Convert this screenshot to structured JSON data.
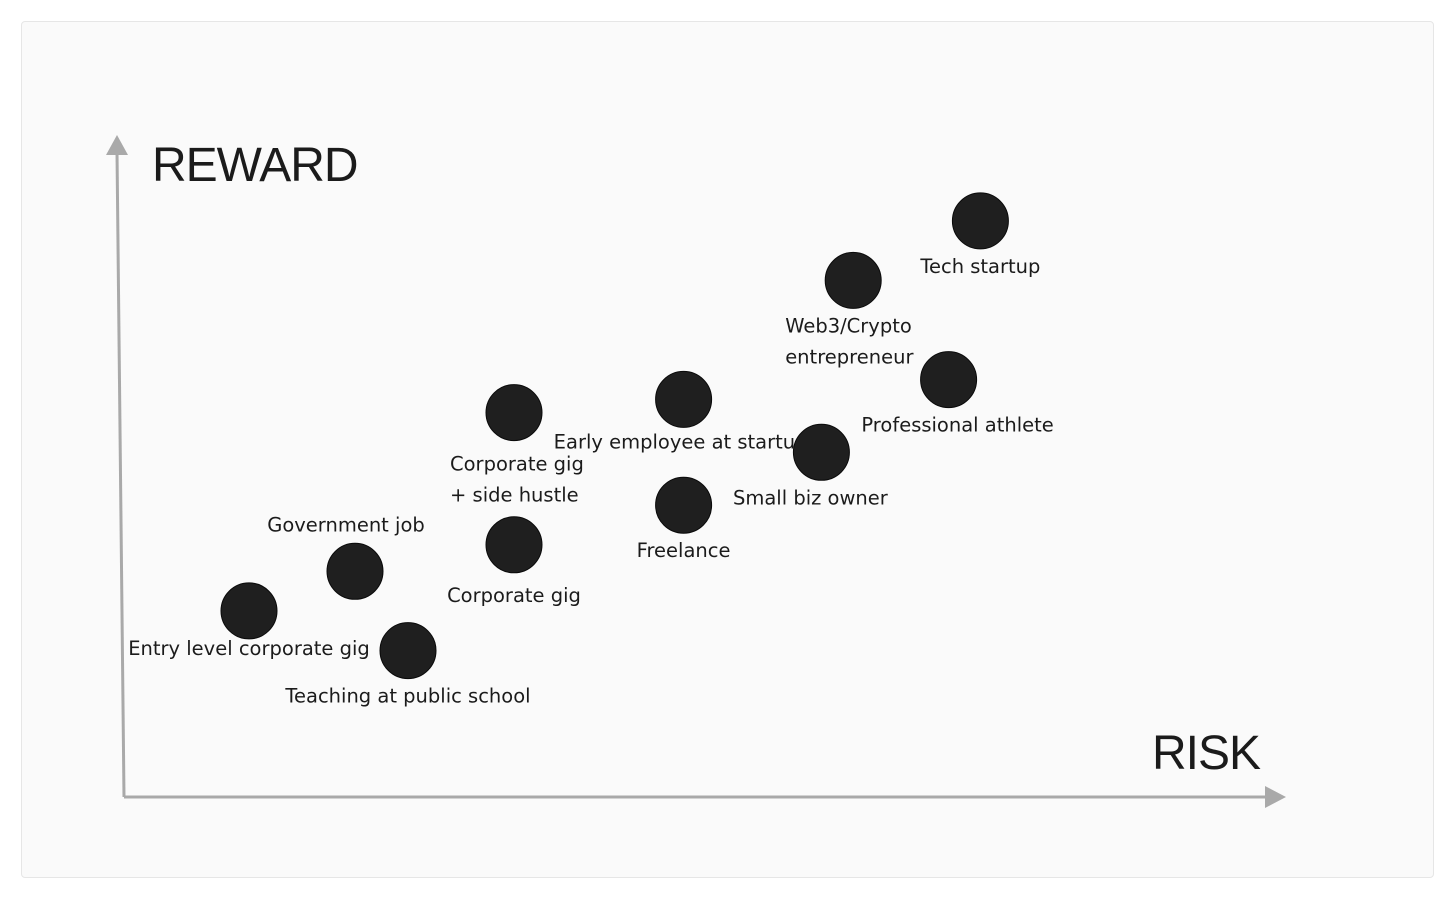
{
  "chart_data": {
    "type": "scatter",
    "title": "",
    "xlabel": "RISK",
    "ylabel": "REWARD",
    "xlim": [
      0,
      100
    ],
    "ylim": [
      0,
      100
    ],
    "grid": false,
    "legend": "none",
    "dot_color": "#1f1f1f",
    "axis_color": "#a9a9a9",
    "points": [
      {
        "label": [
          "Tech startup"
        ],
        "x": 84,
        "y": 87
      },
      {
        "label": [
          "Web3/Crypto",
          "entrepreneur"
        ],
        "x": 72,
        "y": 78
      },
      {
        "label": [
          "Professional athlete"
        ],
        "x": 81,
        "y": 63
      },
      {
        "label": [
          "Early employee at startup"
        ],
        "x": 56,
        "y": 60
      },
      {
        "label": [
          "Small biz owner"
        ],
        "x": 69,
        "y": 52
      },
      {
        "label": [
          "Corporate gig",
          "+ side hustle"
        ],
        "x": 40,
        "y": 58
      },
      {
        "label": [
          "Freelance"
        ],
        "x": 56,
        "y": 44
      },
      {
        "label": [
          "Corporate gig"
        ],
        "x": 40,
        "y": 38
      },
      {
        "label": [
          "Government job"
        ],
        "x": 25,
        "y": 34
      },
      {
        "label": [
          "Entry level corporate gig"
        ],
        "x": 15,
        "y": 28
      },
      {
        "label": [
          "Teaching at public school"
        ],
        "x": 30,
        "y": 22
      }
    ]
  }
}
